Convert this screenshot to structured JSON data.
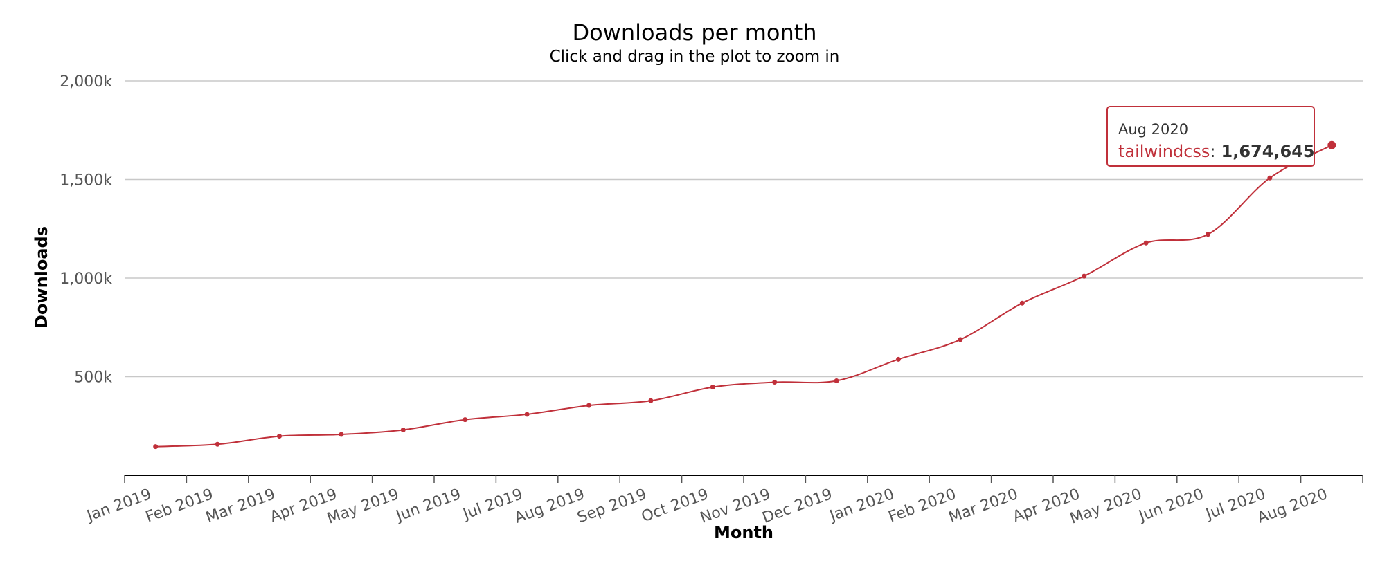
{
  "chart_data": {
    "type": "line",
    "title": "Downloads per month",
    "subtitle": "Click and drag in the plot to zoom in",
    "xlabel": "Month",
    "ylabel": "Downloads",
    "categories": [
      "Jan 2019",
      "Feb 2019",
      "Mar 2019",
      "Apr 2019",
      "May 2019",
      "Jun 2019",
      "Jul 2019",
      "Aug 2019",
      "Sep 2019",
      "Oct 2019",
      "Nov 2019",
      "Dec 2019",
      "Jan 2020",
      "Feb 2020",
      "Mar 2020",
      "Apr 2020",
      "May 2020",
      "Jun 2020",
      "Jul 2020",
      "Aug 2020"
    ],
    "y_ticks": [
      {
        "value": 500000,
        "label": "500k"
      },
      {
        "value": 1000000,
        "label": "1,000k"
      },
      {
        "value": 1500000,
        "label": "1,500k"
      },
      {
        "value": 2000000,
        "label": "2,000k"
      }
    ],
    "ylim": [
      0,
      2000000
    ],
    "grid": true,
    "legend": "none",
    "series": [
      {
        "name": "tailwindcss",
        "color": "#c0303a",
        "values": [
          145000,
          157000,
          198000,
          207000,
          230000,
          282000,
          309000,
          354000,
          378000,
          447000,
          472000,
          479000,
          588000,
          688000,
          873000,
          1010000,
          1178000,
          1222000,
          1508000,
          1674645
        ]
      }
    ],
    "tooltip": {
      "header": "Aug 2020",
      "series_name": "tailwindcss",
      "separator": ":",
      "value_label": "1,674,645",
      "point_index": 19
    }
  }
}
